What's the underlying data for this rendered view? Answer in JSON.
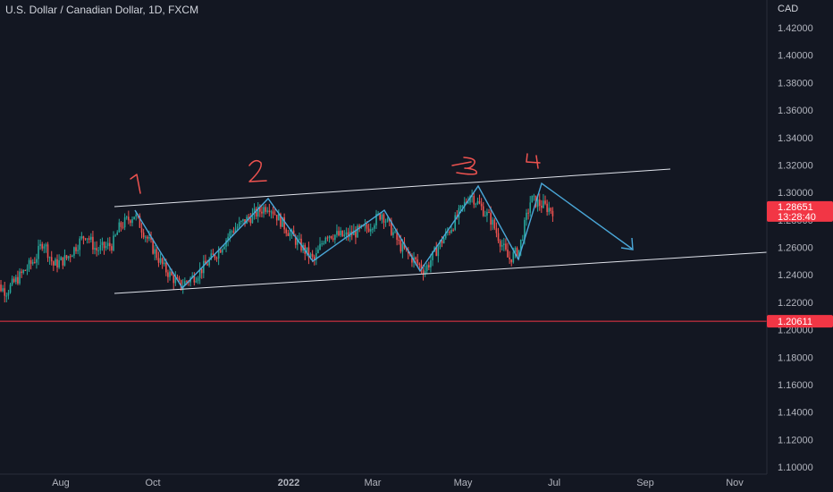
{
  "header": {
    "symbol_title": "U.S. Dollar / Canadian Dollar, 1D, FXCM",
    "currency": "CAD"
  },
  "colors": {
    "background": "#131722",
    "up": "#26a69a",
    "down": "#ef5350",
    "drawing_white": "#e0e3eb",
    "drawing_blue": "#4aa7d8",
    "horizontal_line": "#f23645",
    "label_bg": "#f23645"
  },
  "chart_data": {
    "type": "candlestick",
    "title": "U.S. Dollar / Canadian Dollar, 1D, FXCM",
    "ylim": [
      1.09,
      1.43
    ],
    "y_ticks": [
      "1.42000",
      "1.40000",
      "1.38000",
      "1.36000",
      "1.34000",
      "1.32000",
      "1.30000",
      "1.28000",
      "1.26000",
      "1.24000",
      "1.22000",
      "1.20000",
      "1.18000",
      "1.16000",
      "1.14000",
      "1.12000",
      "1.10000"
    ],
    "x_ticks": [
      "Aug",
      "Oct",
      "2022",
      "Mar",
      "May",
      "Jul",
      "Sep",
      "Nov"
    ],
    "price_path": [
      [
        "2021-06-15",
        1.235
      ],
      [
        "2021-06-25",
        1.228
      ],
      [
        "2021-07-05",
        1.24
      ],
      [
        "2021-07-15",
        1.252
      ],
      [
        "2021-07-20",
        1.265
      ],
      [
        "2021-07-27",
        1.247
      ],
      [
        "2021-08-05",
        1.252
      ],
      [
        "2021-08-18",
        1.27
      ],
      [
        "2021-08-25",
        1.258
      ],
      [
        "2021-09-05",
        1.262
      ],
      [
        "2021-09-10",
        1.275
      ],
      [
        "2021-09-20",
        1.284
      ],
      [
        "2021-10-01",
        1.262
      ],
      [
        "2021-10-10",
        1.245
      ],
      [
        "2021-10-21",
        1.232
      ],
      [
        "2021-11-01",
        1.24
      ],
      [
        "2021-11-15",
        1.256
      ],
      [
        "2021-11-25",
        1.272
      ],
      [
        "2021-12-05",
        1.28
      ],
      [
        "2021-12-20",
        1.291
      ],
      [
        "2022-01-05",
        1.268
      ],
      [
        "2022-01-20",
        1.25
      ],
      [
        "2022-01-28",
        1.27
      ],
      [
        "2022-02-10",
        1.268
      ],
      [
        "2022-02-25",
        1.274
      ],
      [
        "2022-03-07",
        1.285
      ],
      [
        "2022-03-20",
        1.26
      ],
      [
        "2022-04-05",
        1.243
      ],
      [
        "2022-04-15",
        1.262
      ],
      [
        "2022-04-25",
        1.278
      ],
      [
        "2022-05-06",
        1.299
      ],
      [
        "2022-05-20",
        1.28
      ],
      [
        "2022-06-01",
        1.251
      ],
      [
        "2022-06-08",
        1.258
      ],
      [
        "2022-06-16",
        1.295
      ],
      [
        "2022-06-25",
        1.29
      ],
      [
        "2022-07-01",
        1.287
      ]
    ],
    "last_price_label": "1.28651",
    "countdown_label": "13:28:40",
    "horizontal_line": {
      "price": 1.20611,
      "label": "1.20611"
    },
    "annotations": [
      "1",
      "2",
      "3",
      "4"
    ]
  }
}
